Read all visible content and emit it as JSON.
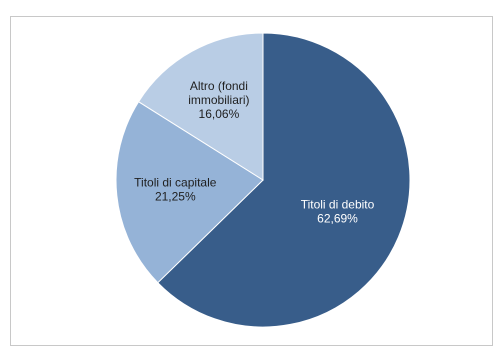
{
  "chart_data": {
    "type": "pie",
    "title": "",
    "slices": [
      {
        "label_lines": [
          "Titoli di debito",
          "62,69%"
        ],
        "value": 62.69,
        "color": "#385d8a",
        "text_color": "#ffffff"
      },
      {
        "label_lines": [
          "Titoli di capitale",
          "21,25%"
        ],
        "value": 21.25,
        "color": "#95b3d7",
        "text_color": "#1f1f1f"
      },
      {
        "label_lines": [
          "Altro (fondi",
          "immobiliari)",
          "16,06%"
        ],
        "value": 16.06,
        "color": "#b9cde5",
        "text_color": "#1f1f1f"
      }
    ],
    "start_angle_deg": 0,
    "direction": "clockwise",
    "legend": "none"
  }
}
